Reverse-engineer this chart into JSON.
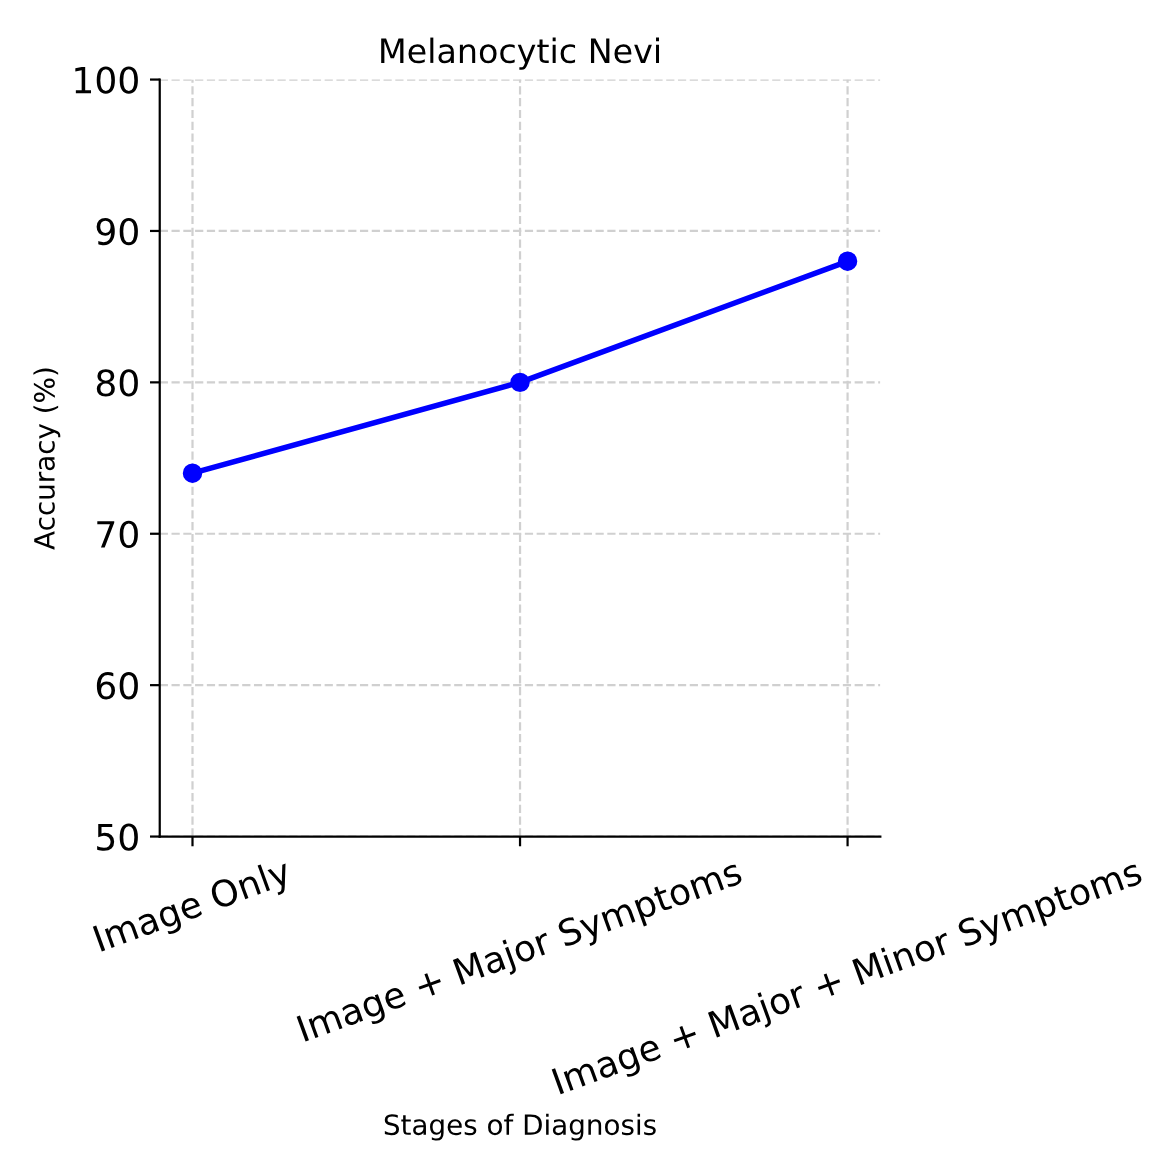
{
  "chart_data": {
    "type": "line",
    "title": "Melanocytic Nevi",
    "xlabel": "Stages of Diagnosis",
    "ylabel": "Accuracy (%)",
    "categories": [
      "Image Only",
      "Image + Major Symptoms",
      "Image + Major + Minor Symptoms"
    ],
    "series": [
      {
        "color": "#0000ff",
        "values": [
          74,
          80,
          88
        ]
      }
    ],
    "ylim": [
      50,
      100
    ],
    "yticks": [
      50,
      60,
      70,
      80,
      90,
      100
    ],
    "grid": true,
    "marker": "circle",
    "line_style": "solid"
  }
}
